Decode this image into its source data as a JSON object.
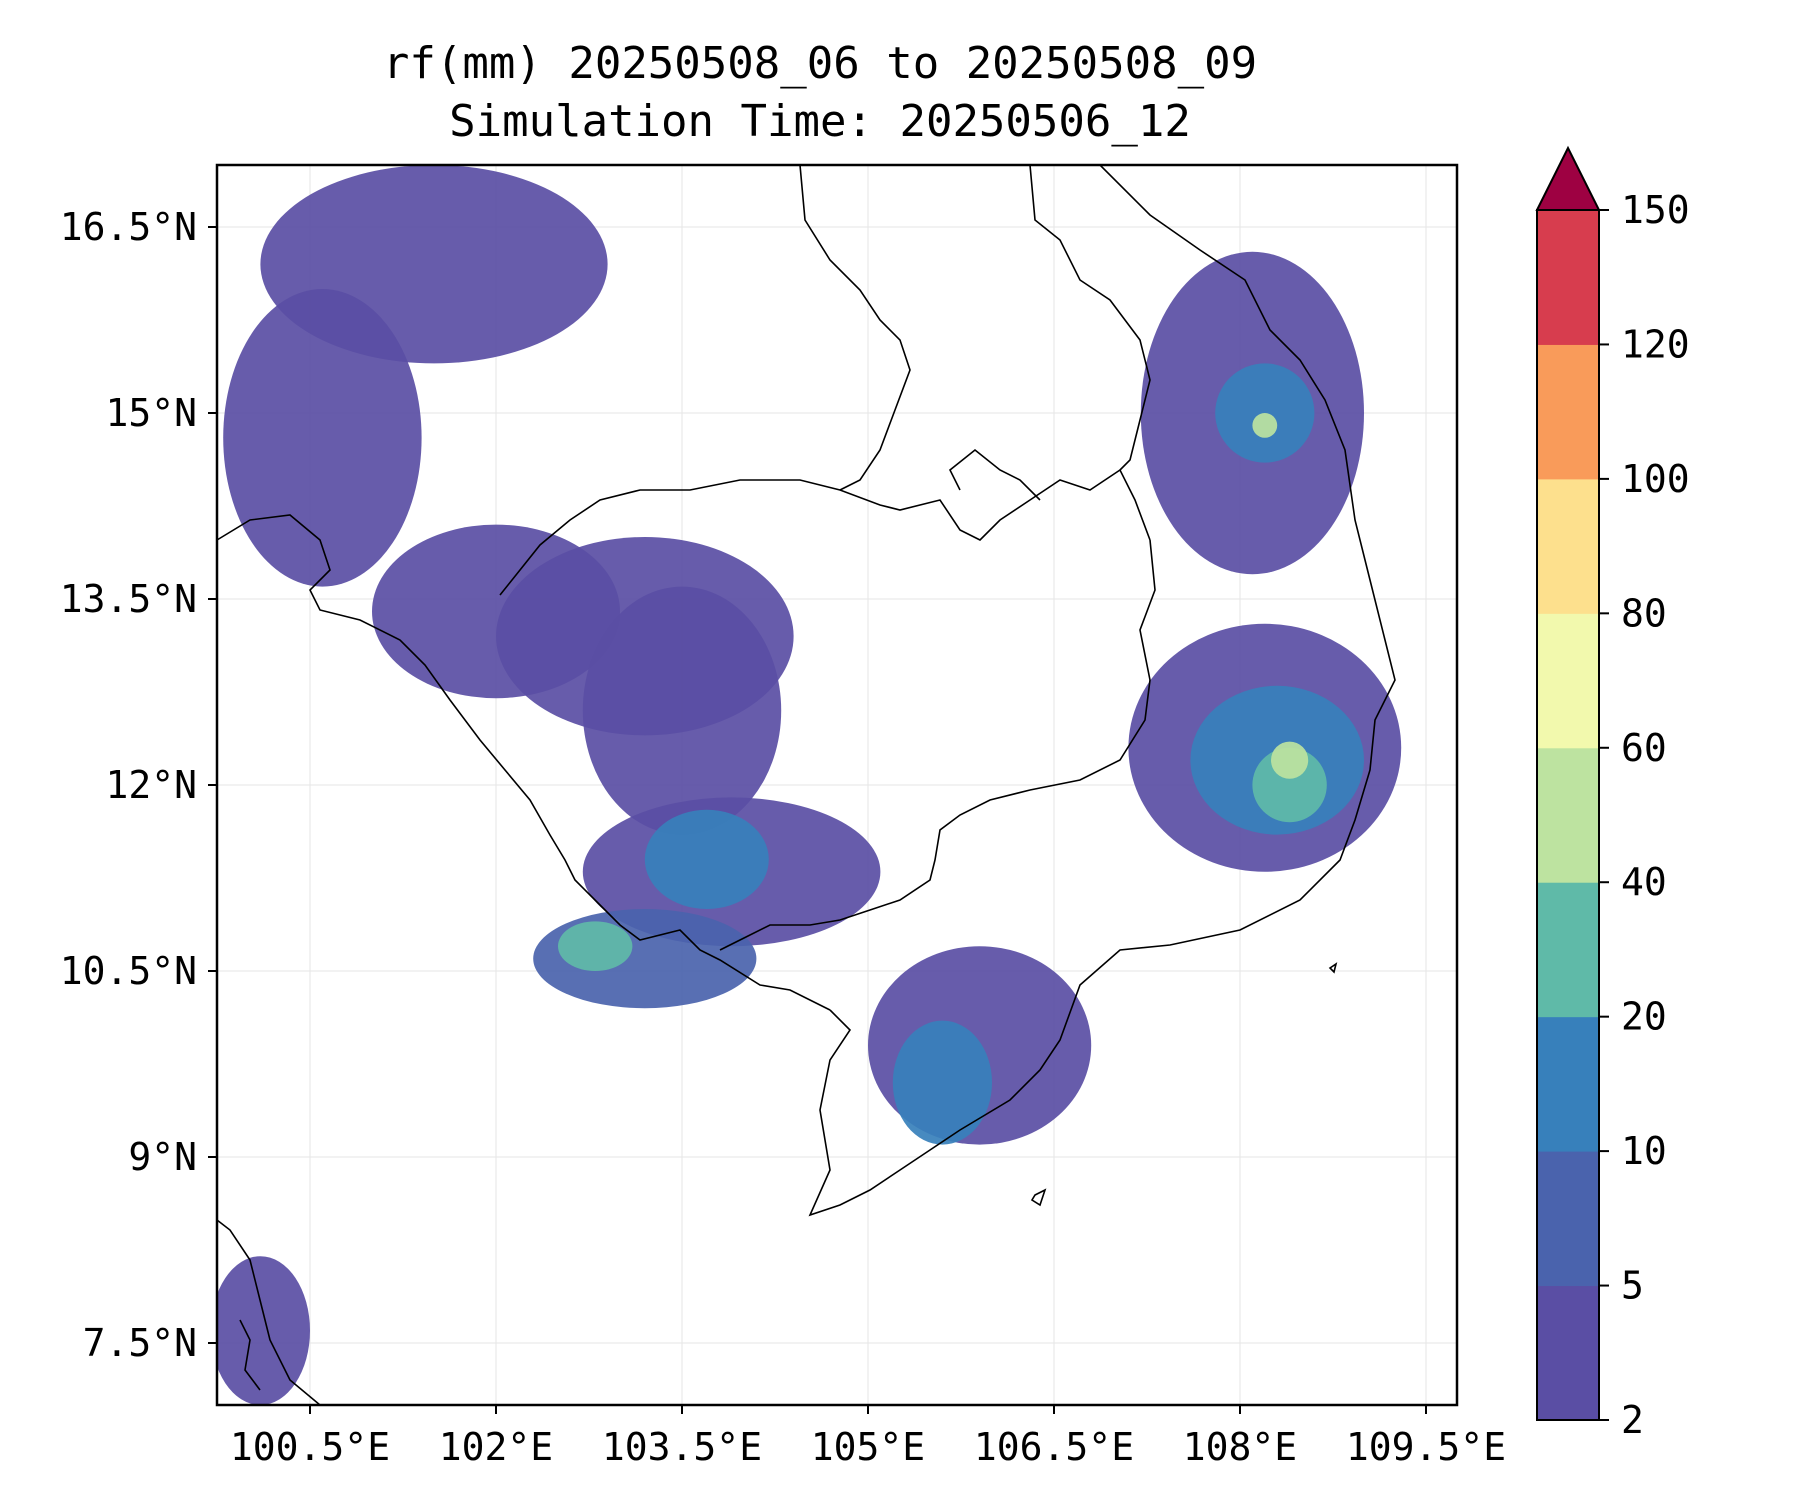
{
  "title": {
    "line1": "rf(mm) 20250508_06 to 20250508_09",
    "line2": "Simulation Time: 20250506_12"
  },
  "map": {
    "variable": "rf(mm)",
    "lon_range": [
      99.75,
      109.75
    ],
    "lat_range": [
      7.0,
      17.0
    ],
    "lon_ticks": [
      100.5,
      102,
      103.5,
      105,
      106.5,
      108,
      109.5
    ],
    "lon_tick_labels": [
      "100.5°E",
      "102°E",
      "103.5°E",
      "105°E",
      "106.5°E",
      "108°E",
      "109.5°E"
    ],
    "lat_ticks": [
      16.5,
      15,
      13.5,
      12,
      10.5,
      9,
      7.5
    ],
    "lat_tick_labels": [
      "16.5°N",
      "15°N",
      "13.5°N",
      "12°N",
      "10.5°N",
      "9°N",
      "7.5°N"
    ],
    "grid": true
  },
  "colorbar": {
    "levels": [
      "2",
      "5",
      "10",
      "20",
      "40",
      "60",
      "80",
      "100",
      "120",
      "150"
    ],
    "colors": [
      "#5a4ea4",
      "#4a63ad",
      "#3780bb",
      "#5fbaa8",
      "#bde3a0",
      "#f2f9ad",
      "#fde08d",
      "#f99b5a",
      "#d73d4e",
      "#9e0142"
    ],
    "extend": "max"
  },
  "chart_data": {
    "type": "heatmap",
    "title": "rf(mm) 20250508_06 to 20250508_09",
    "subtitle": "Simulation Time: 20250506_12",
    "xlim": [
      99.75,
      109.75
    ],
    "ylim": [
      7.0,
      17.0
    ],
    "contour_levels": [
      2,
      5,
      10,
      20,
      40,
      60,
      80,
      100,
      120,
      150
    ],
    "rain_areas": [
      {
        "lon": 103.2,
        "lat": 13.2,
        "rx": 1.2,
        "ry": 0.8,
        "level": 2
      },
      {
        "lon": 101.5,
        "lat": 16.2,
        "rx": 1.4,
        "ry": 0.8,
        "level": 2
      },
      {
        "lon": 100.6,
        "lat": 14.8,
        "rx": 0.8,
        "ry": 1.2,
        "level": 2
      },
      {
        "lon": 102.0,
        "lat": 13.4,
        "rx": 1.0,
        "ry": 0.7,
        "level": 2
      },
      {
        "lon": 103.5,
        "lat": 12.6,
        "rx": 0.8,
        "ry": 1.0,
        "level": 2
      },
      {
        "lon": 103.9,
        "lat": 11.3,
        "rx": 1.2,
        "ry": 0.6,
        "level": 2
      },
      {
        "lon": 103.2,
        "lat": 10.6,
        "rx": 0.9,
        "ry": 0.4,
        "level": 5
      },
      {
        "lon": 103.7,
        "lat": 11.4,
        "rx": 0.5,
        "ry": 0.4,
        "level": 10
      },
      {
        "lon": 102.8,
        "lat": 10.7,
        "rx": 0.3,
        "ry": 0.2,
        "level": 20
      },
      {
        "lon": 105.9,
        "lat": 9.9,
        "rx": 0.9,
        "ry": 0.8,
        "level": 2
      },
      {
        "lon": 105.6,
        "lat": 9.6,
        "rx": 0.4,
        "ry": 0.5,
        "level": 10
      },
      {
        "lon": 108.2,
        "lat": 12.3,
        "rx": 1.1,
        "ry": 1.0,
        "level": 2
      },
      {
        "lon": 108.3,
        "lat": 12.2,
        "rx": 0.7,
        "ry": 0.6,
        "level": 10
      },
      {
        "lon": 108.4,
        "lat": 12.0,
        "rx": 0.3,
        "ry": 0.3,
        "level": 20
      },
      {
        "lon": 108.4,
        "lat": 12.2,
        "rx": 0.15,
        "ry": 0.15,
        "level": 40
      },
      {
        "lon": 108.1,
        "lat": 15.0,
        "rx": 0.9,
        "ry": 1.3,
        "level": 2
      },
      {
        "lon": 108.2,
        "lat": 15.0,
        "rx": 0.4,
        "ry": 0.4,
        "level": 10
      },
      {
        "lon": 108.2,
        "lat": 14.9,
        "rx": 0.1,
        "ry": 0.1,
        "level": 40
      },
      {
        "lon": 100.1,
        "lat": 7.6,
        "rx": 0.4,
        "ry": 0.6,
        "level": 2
      }
    ]
  }
}
